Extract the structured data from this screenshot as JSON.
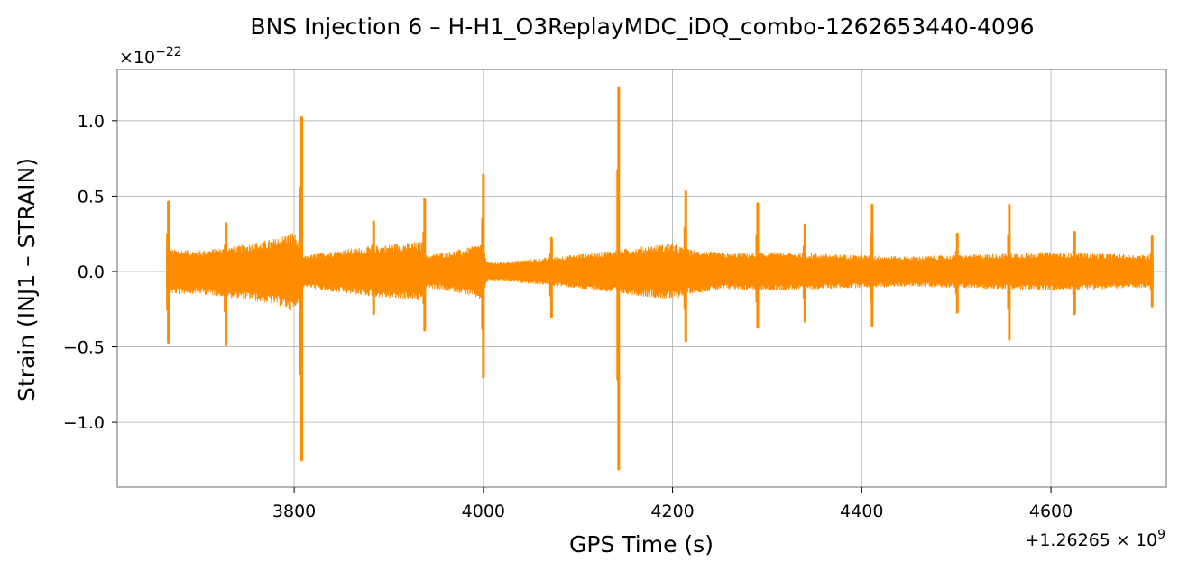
{
  "chart_data": {
    "type": "line",
    "title": "BNS Injection 6 – H-H1_O3ReplayMDC_iDQ_combo-1262653440-4096",
    "xlabel": "GPS Time (s)",
    "ylabel": "Strain (INJ1 – STRAIN)",
    "x_offset_text": "+1.26265 × 10^9",
    "y_scale_text": "×10^−22",
    "xlim": [
      3613,
      4722
    ],
    "ylim": [
      -1.43,
      1.34
    ],
    "xticks": [
      3800,
      4000,
      4200,
      4400,
      4600
    ],
    "xtick_labels": [
      "3800",
      "4000",
      "4200",
      "4400",
      "4600"
    ],
    "yticks": [
      -1.0,
      -0.5,
      0.0,
      0.5,
      1.0
    ],
    "ytick_labels": [
      "−1.0",
      "−0.5",
      "0.0",
      "0.5",
      "1.0"
    ],
    "grid": true,
    "legend": false,
    "color": "#ff8c00",
    "series": [
      {
        "x_start": 3665,
        "x_end": 4708,
        "envelope": {
          "x": [
            3665,
            3700,
            3740,
            3780,
            3800,
            3810,
            3830,
            3870,
            3900,
            3935,
            3940,
            3980,
            3998,
            4005,
            4030,
            4080,
            4120,
            4160,
            4200,
            4215,
            4260,
            4300,
            4350,
            4400,
            4450,
            4500,
            4550,
            4600,
            4650,
            4708
          ],
          "upper": [
            0.15,
            0.14,
            0.17,
            0.22,
            0.27,
            0.1,
            0.13,
            0.16,
            0.18,
            0.2,
            0.11,
            0.15,
            0.19,
            0.06,
            0.07,
            0.1,
            0.13,
            0.16,
            0.19,
            0.15,
            0.12,
            0.13,
            0.12,
            0.11,
            0.1,
            0.11,
            0.12,
            0.13,
            0.12,
            0.11
          ],
          "lower": [
            -0.15,
            -0.15,
            -0.18,
            -0.22,
            -0.27,
            -0.1,
            -0.13,
            -0.16,
            -0.18,
            -0.2,
            -0.11,
            -0.15,
            -0.19,
            -0.06,
            -0.07,
            -0.1,
            -0.13,
            -0.16,
            -0.19,
            -0.15,
            -0.12,
            -0.13,
            -0.12,
            -0.11,
            -0.1,
            -0.11,
            -0.12,
            -0.13,
            -0.12,
            -0.11
          ]
        },
        "glitches": [
          {
            "x": 3667,
            "max": 0.46,
            "min": -0.47
          },
          {
            "x": 3728,
            "max": 0.32,
            "min": -0.49
          },
          {
            "x": 3808,
            "max": 1.02,
            "min": -1.25
          },
          {
            "x": 3884,
            "max": 0.33,
            "min": -0.28
          },
          {
            "x": 3938,
            "max": 0.48,
            "min": -0.39
          },
          {
            "x": 4000,
            "max": 0.64,
            "min": -0.7
          },
          {
            "x": 4072,
            "max": 0.22,
            "min": -0.3
          },
          {
            "x": 4143,
            "max": 1.22,
            "min": -1.31
          },
          {
            "x": 4214,
            "max": 0.53,
            "min": -0.46
          },
          {
            "x": 4290,
            "max": 0.45,
            "min": -0.37
          },
          {
            "x": 4340,
            "max": 0.31,
            "min": -0.33
          },
          {
            "x": 4411,
            "max": 0.44,
            "min": -0.36
          },
          {
            "x": 4501,
            "max": 0.25,
            "min": -0.27
          },
          {
            "x": 4556,
            "max": 0.44,
            "min": -0.45
          },
          {
            "x": 4625,
            "max": 0.26,
            "min": -0.28
          },
          {
            "x": 4707,
            "max": 0.23,
            "min": -0.23
          }
        ]
      }
    ]
  }
}
